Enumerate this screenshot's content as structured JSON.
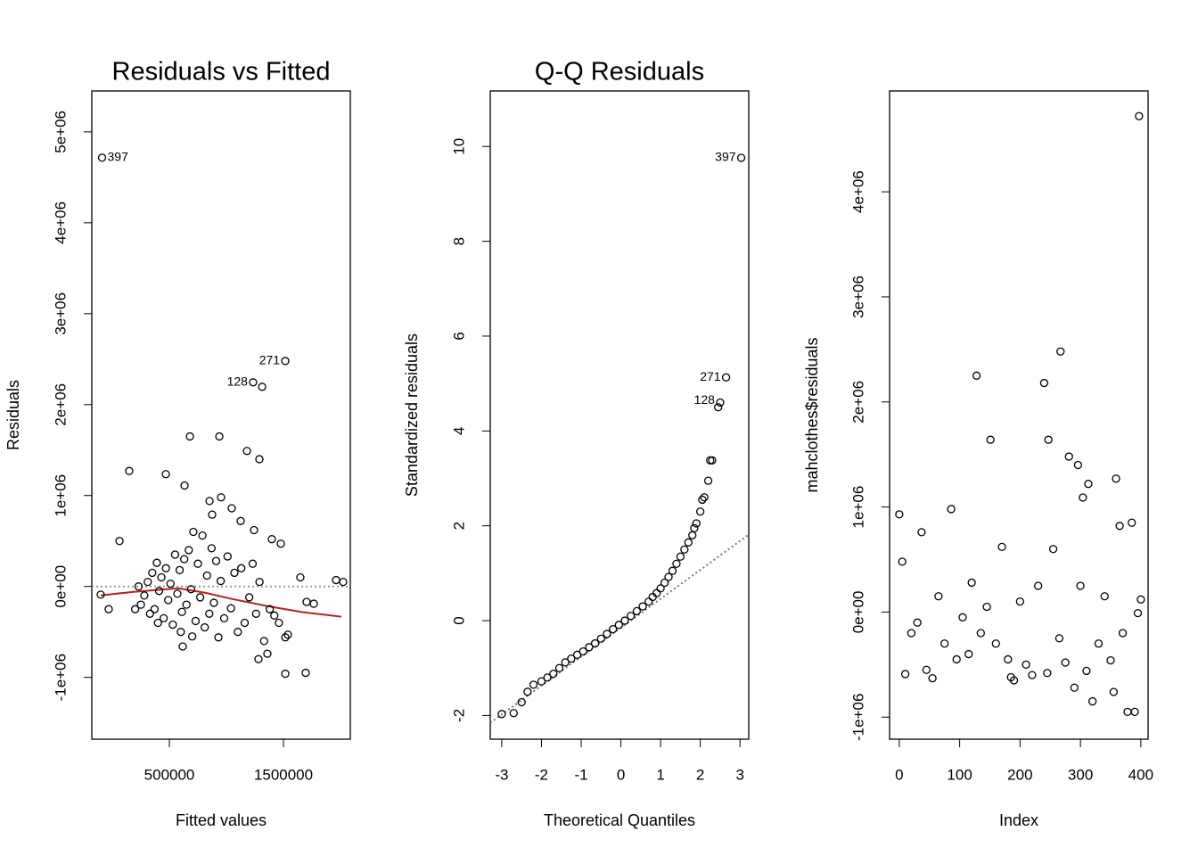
{
  "chart_data": [
    {
      "type": "scatter",
      "title": "Residuals vs Fitted",
      "x_label": "Fitted values",
      "y_label": "Residuals",
      "xlim": [
        -180000,
        2086000
      ],
      "ylim": [
        -1680000,
        5450000
      ],
      "xticks": [
        500000,
        1500000
      ],
      "yticks": [
        {
          "value": -1000000,
          "label": "-1e+06"
        },
        {
          "value": 0,
          "label": "0e+00"
        },
        {
          "value": 1000000,
          "label": "1e+06"
        },
        {
          "value": 2000000,
          "label": "2e+06"
        },
        {
          "value": 3000000,
          "label": "3e+06"
        },
        {
          "value": 4000000,
          "label": "4e+06"
        },
        {
          "value": 5000000,
          "label": "5e+06"
        }
      ],
      "x": [
        -90000,
        1516000,
        1234000,
        1313000,
        148000,
        469000,
        680000,
        938000,
        633000,
        1180000,
        1289000,
        852000,
        953000,
        1047000,
        875000,
        1125000,
        1242000,
        1398000,
        1477000,
        1648000,
        1961000,
        2023000,
        1703000,
        1766000,
        1516000,
        1539000,
        1516000,
        1695000,
        1281000,
        1359000,
        617000,
        63000,
        -102000,
        -32000,
        250000,
        280000,
        310000,
        330000,
        350000,
        370000,
        390000,
        410000,
        430000,
        450000,
        470000,
        490000,
        510000,
        530000,
        550000,
        570000,
        590000,
        610000,
        630000,
        650000,
        670000,
        690000,
        710000,
        730000,
        750000,
        770000,
        790000,
        810000,
        830000,
        850000,
        870000,
        890000,
        910000,
        930000,
        950000,
        980000,
        1010000,
        1040000,
        1070000,
        1100000,
        1130000,
        1160000,
        1200000,
        1230000,
        1260000,
        1290000,
        1330000,
        1380000,
        1420000,
        1460000,
        200000,
        230000,
        400000,
        600000,
        700000
      ],
      "values": [
        4716000,
        2480000,
        2245000,
        2196000,
        1270000,
        1235000,
        1650000,
        1650000,
        1110000,
        1490000,
        1400000,
        940000,
        980000,
        860000,
        790000,
        720000,
        620000,
        520000,
        470000,
        100000,
        70000,
        50000,
        -170000,
        -190000,
        -560000,
        -530000,
        -960000,
        -950000,
        -800000,
        -740000,
        -660000,
        500000,
        -90000,
        -250000,
        -200000,
        -100000,
        50000,
        -300000,
        150000,
        -250000,
        260000,
        -50000,
        100000,
        -350000,
        200000,
        -150000,
        30000,
        -420000,
        350000,
        -80000,
        180000,
        -280000,
        300000,
        -200000,
        400000,
        -30000,
        600000,
        -380000,
        250000,
        -120000,
        560000,
        -450000,
        120000,
        -300000,
        420000,
        -180000,
        280000,
        -560000,
        60000,
        -350000,
        330000,
        -240000,
        150000,
        -500000,
        200000,
        -400000,
        -120000,
        250000,
        -300000,
        50000,
        -600000,
        -250000,
        -320000,
        -400000,
        -250000,
        0,
        -400000,
        -500000,
        -550000
      ],
      "hline": 0,
      "smooth": {
        "color": "#b22222",
        "x": [
          -101600,
          187500,
          578000,
          812500,
          1047000,
          1359000,
          1672000,
          2008000
        ],
        "values": [
          -98000,
          -59000,
          -20000,
          -69000,
          -137000,
          -216000,
          -284000,
          -333000
        ]
      },
      "point_labels": [
        {
          "text": "397",
          "x": -90000,
          "y": 4716000
        },
        {
          "text": "271",
          "x": 1516000,
          "y": 2480000
        },
        {
          "text": "128",
          "x": 1234000,
          "y": 2245000
        }
      ]
    },
    {
      "type": "scatter",
      "title": "Q-Q Residuals",
      "x_label": "Theoretical Quantiles",
      "y_label": "Standardized residuals",
      "xlim": [
        -3.29,
        3.22
      ],
      "ylim": [
        -2.5,
        11.17
      ],
      "xticks": [
        -3,
        -2,
        -1,
        0,
        1,
        2,
        3
      ],
      "yticks": [
        -2,
        0,
        2,
        4,
        6,
        8,
        10
      ],
      "x": [
        -3,
        -2.7,
        -2.5,
        -2.35,
        -2.2,
        -2.0,
        -1.85,
        -1.7,
        -1.55,
        -1.4,
        -1.25,
        -1.1,
        -0.95,
        -0.8,
        -0.65,
        -0.5,
        -0.35,
        -0.2,
        -0.05,
        0.1,
        0.25,
        0.4,
        0.55,
        0.7,
        0.8,
        0.9,
        1.0,
        1.1,
        1.2,
        1.3,
        1.4,
        1.5,
        1.6,
        1.7,
        1.8,
        1.85,
        1.9,
        2.0,
        2.05,
        2.1,
        2.2,
        2.25,
        2.3,
        2.45,
        2.5,
        2.65,
        3.03
      ],
      "values": [
        -1.97,
        -1.95,
        -1.72,
        -1.5,
        -1.35,
        -1.28,
        -1.2,
        -1.12,
        -1.0,
        -0.88,
        -0.8,
        -0.72,
        -0.65,
        -0.56,
        -0.48,
        -0.38,
        -0.28,
        -0.18,
        -0.09,
        0.0,
        0.1,
        0.2,
        0.3,
        0.4,
        0.5,
        0.58,
        0.68,
        0.8,
        0.92,
        1.05,
        1.2,
        1.35,
        1.5,
        1.65,
        1.8,
        1.95,
        2.05,
        2.3,
        2.55,
        2.6,
        2.95,
        3.38,
        3.38,
        4.5,
        4.6,
        5.13,
        9.76
      ],
      "reference_line": {
        "intercept": -0.15,
        "slope": 0.61
      },
      "point_labels": [
        {
          "text": "397",
          "x": 3.03,
          "y": 9.76
        },
        {
          "text": "271",
          "x": 2.65,
          "y": 5.13
        },
        {
          "text": "128",
          "x": 2.5,
          "y": 4.64
        }
      ]
    },
    {
      "type": "scatter",
      "x_label": "Index",
      "y_label": "mahclothes$residuals",
      "xlim": [
        -16,
        412
      ],
      "ylim": [
        -1210000,
        4960000
      ],
      "xticks": [
        0,
        100,
        200,
        300,
        400
      ],
      "yticks": [
        {
          "value": -1000000,
          "label": "-1e+06"
        },
        {
          "value": 0,
          "label": "0e+00"
        },
        {
          "value": 1000000,
          "label": "1e+06"
        },
        {
          "value": 2000000,
          "label": "2e+06"
        },
        {
          "value": 3000000,
          "label": "3e+06"
        },
        {
          "value": 4000000,
          "label": "4e+06"
        }
      ],
      "x": [
        397,
        0,
        128,
        240,
        267,
        151,
        247,
        281,
        296,
        313,
        359,
        86,
        304,
        37,
        5,
        20,
        10,
        30,
        45,
        55,
        65,
        75,
        95,
        105,
        115,
        120,
        135,
        145,
        160,
        170,
        180,
        185,
        190,
        200,
        210,
        220,
        230,
        245,
        255,
        265,
        275,
        290,
        300,
        310,
        320,
        330,
        340,
        350,
        355,
        365,
        370,
        378,
        385,
        390,
        395,
        400
      ],
      "values": [
        4720000,
        930000,
        2250000,
        2180000,
        2480000,
        1640000,
        1640000,
        1480000,
        1400000,
        1220000,
        1270000,
        980000,
        1090000,
        760000,
        480000,
        -200000,
        -590000,
        -100000,
        -550000,
        -630000,
        150000,
        -300000,
        -450000,
        -50000,
        -400000,
        280000,
        -200000,
        50000,
        -300000,
        620000,
        -450000,
        -620000,
        -650000,
        100000,
        -500000,
        -600000,
        250000,
        -580000,
        600000,
        -250000,
        -480000,
        -720000,
        250000,
        -560000,
        -850000,
        -300000,
        150000,
        -460000,
        -760000,
        820000,
        -200000,
        -950000,
        850000,
        -950000,
        -10000,
        120000
      ]
    }
  ]
}
